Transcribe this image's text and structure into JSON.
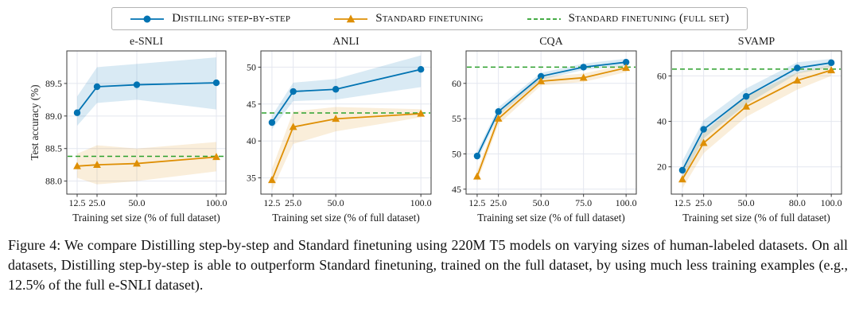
{
  "legend": {
    "items": [
      {
        "label": "Distilling step-by-step",
        "color": "#0173b2",
        "marker": "circle",
        "dash": false
      },
      {
        "label": "Standard finetuning",
        "color": "#de8f05",
        "marker": "triangle",
        "dash": false
      },
      {
        "label": "Standard finetuning (full set)",
        "color": "#2ca02c",
        "marker": "none",
        "dash": true
      }
    ]
  },
  "xlabel": "Training set size (% of full dataset)",
  "ylabel": "Test accuracy (%)",
  "caption": "Figure 4: We compare Distilling step-by-step and Standard finetuning using 220M T5 models on varying sizes of human-labeled datasets. On all datasets, Distilling step-by-step is able to outperform Standard finetuning, trained on the full dataset, by using much less training examples (e.g., 12.5% of the full e-SNLI dataset).",
  "chart_data": [
    {
      "type": "line",
      "title": "e-SNLI",
      "xlabel": "Training set size (% of full dataset)",
      "ylabel": "Test accuracy (%)",
      "x": [
        12.5,
        25,
        50,
        100
      ],
      "xticks": [
        12.5,
        25,
        50,
        100
      ],
      "xtick_labels": [
        "12.5",
        "25.0",
        "50.0",
        "100.0"
      ],
      "xlim": [
        6,
        106
      ],
      "yticks": [
        88.0,
        88.5,
        89.0,
        89.5
      ],
      "ytick_labels": [
        "88.0",
        "88.5",
        "89.0",
        "89.5"
      ],
      "ylim": [
        87.8,
        90.0
      ],
      "series": [
        {
          "name": "Distilling step-by-step",
          "values": [
            89.05,
            89.45,
            89.48,
            89.51
          ],
          "band_lo": [
            88.85,
            89.2,
            89.25,
            89.1
          ],
          "band_hi": [
            89.3,
            89.75,
            89.8,
            89.9
          ]
        },
        {
          "name": "Standard finetuning",
          "values": [
            88.23,
            88.25,
            88.27,
            88.37
          ],
          "band_lo": [
            88.05,
            87.95,
            88.0,
            88.15
          ],
          "band_hi": [
            88.42,
            88.55,
            88.5,
            88.6
          ]
        }
      ],
      "hline": 88.38,
      "hline_name": "Standard finetuning (full set)"
    },
    {
      "type": "line",
      "title": "ANLI",
      "xlabel": "Training set size (% of full dataset)",
      "x": [
        12.5,
        25,
        50,
        100
      ],
      "xticks": [
        12.5,
        25,
        50,
        100
      ],
      "xtick_labels": [
        "12.5",
        "25.0",
        "50.0",
        "100.0"
      ],
      "xlim": [
        6,
        106
      ],
      "yticks": [
        35,
        40,
        45,
        50
      ],
      "ytick_labels": [
        "35",
        "40",
        "45",
        "50"
      ],
      "ylim": [
        32.8,
        52.2
      ],
      "series": [
        {
          "name": "Distilling step-by-step",
          "values": [
            42.5,
            46.7,
            47.0,
            49.7
          ],
          "band_lo": [
            41.6,
            45.4,
            45.6,
            47.3
          ],
          "band_hi": [
            43.4,
            47.9,
            48.4,
            51.6
          ]
        },
        {
          "name": "Standard finetuning",
          "values": [
            34.7,
            41.9,
            43.0,
            43.7
          ],
          "band_lo": [
            33.3,
            39.6,
            41.3,
            43.2
          ],
          "band_hi": [
            36.2,
            44.0,
            44.6,
            44.3
          ]
        }
      ],
      "hline": 43.8,
      "hline_name": "Standard finetuning (full set)"
    },
    {
      "type": "line",
      "title": "CQA",
      "xlabel": "Training set size (% of full dataset)",
      "x": [
        12.5,
        25,
        50,
        75,
        100
      ],
      "xticks": [
        12.5,
        25,
        50,
        75,
        100
      ],
      "xtick_labels": [
        "12.5",
        "25.0",
        "50.0",
        "75.0",
        "100.0"
      ],
      "xlim": [
        6,
        106
      ],
      "yticks": [
        45,
        50,
        55,
        60
      ],
      "ytick_labels": [
        "45",
        "50",
        "55",
        "60"
      ],
      "ylim": [
        44.3,
        64.6
      ],
      "series": [
        {
          "name": "Distilling step-by-step",
          "values": [
            49.7,
            56.0,
            61.0,
            62.3,
            63.0
          ],
          "band_lo": [
            49.0,
            55.4,
            60.5,
            61.9,
            62.5
          ],
          "band_hi": [
            50.4,
            56.6,
            61.5,
            62.8,
            63.5
          ]
        },
        {
          "name": "Standard finetuning",
          "values": [
            46.8,
            55.0,
            60.3,
            60.8,
            62.2
          ],
          "band_lo": [
            46.0,
            54.2,
            59.7,
            60.2,
            61.6
          ],
          "band_hi": [
            47.6,
            55.8,
            60.9,
            61.4,
            62.7
          ]
        }
      ],
      "hline": 62.3,
      "hline_name": "Standard finetuning (full set)"
    },
    {
      "type": "line",
      "title": "SVAMP",
      "xlabel": "Training set size (% of full dataset)",
      "x": [
        12.5,
        25,
        50,
        80,
        100
      ],
      "xticks": [
        12.5,
        25,
        50,
        80,
        100
      ],
      "xtick_labels": [
        "12.5",
        "25.0",
        "50.0",
        "80.0",
        "100.0"
      ],
      "xlim": [
        6,
        106
      ],
      "yticks": [
        20,
        40,
        60
      ],
      "ytick_labels": [
        "20",
        "40",
        "60"
      ],
      "ylim": [
        8,
        71
      ],
      "series": [
        {
          "name": "Distilling step-by-step",
          "values": [
            18.5,
            36.5,
            51.0,
            63.5,
            65.8
          ],
          "band_lo": [
            14.5,
            32.5,
            47.5,
            61.0,
            63.8
          ],
          "band_hi": [
            22.5,
            40.5,
            54.5,
            66.0,
            67.5
          ]
        },
        {
          "name": "Standard finetuning",
          "values": [
            14.5,
            30.5,
            46.5,
            58.0,
            62.5
          ],
          "band_lo": [
            10.5,
            26.0,
            42.0,
            54.0,
            60.0
          ],
          "band_hi": [
            18.5,
            35.0,
            51.0,
            61.5,
            65.0
          ]
        }
      ],
      "hline": 63.0,
      "hline_name": "Standard finetuning (full set)"
    }
  ]
}
